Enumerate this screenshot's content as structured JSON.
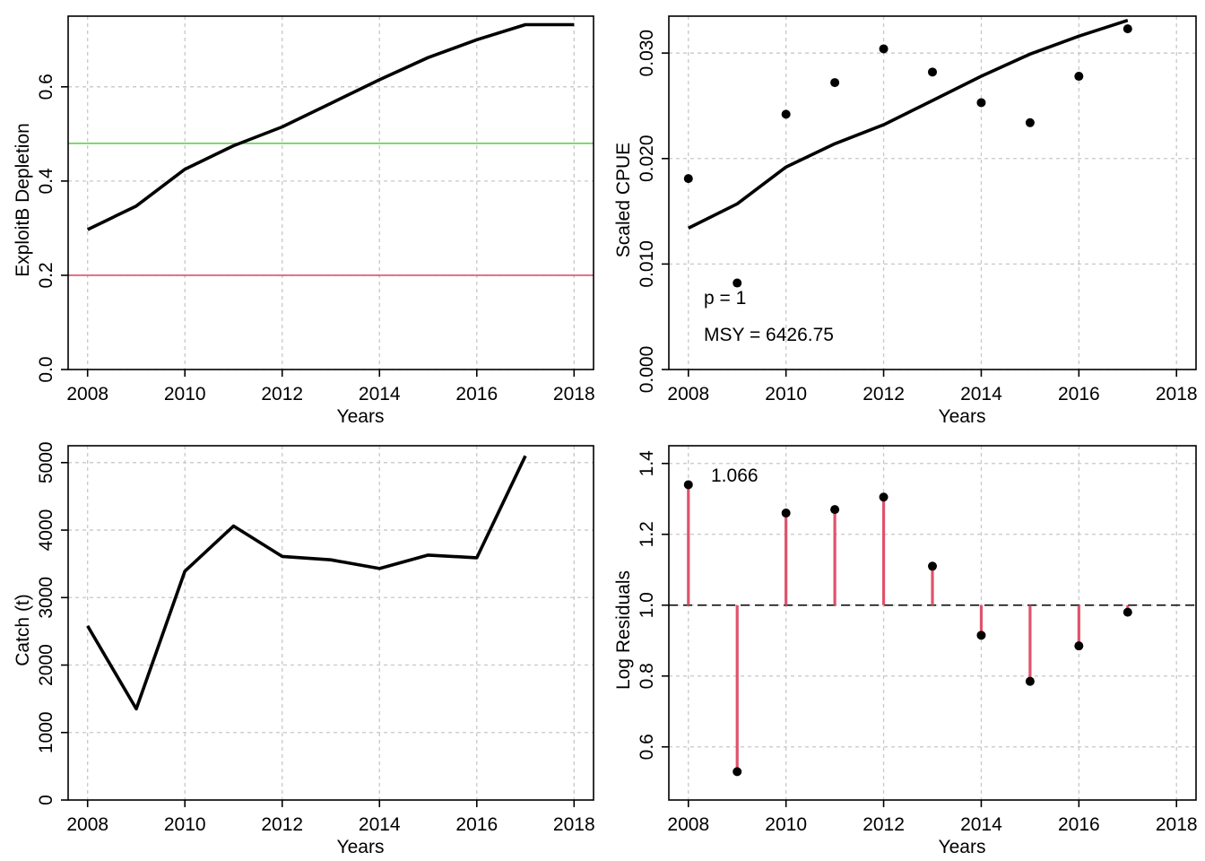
{
  "chart_data": [
    {
      "id": "depletion",
      "type": "line",
      "xlabel": "Years",
      "ylabel": "ExploitB Depletion",
      "xlim": [
        2007.6,
        2018.4
      ],
      "ylim": [
        0.0,
        0.75
      ],
      "xticks": [
        2008,
        2010,
        2012,
        2014,
        2016,
        2018
      ],
      "yticks": [
        0.0,
        0.2,
        0.4,
        0.6
      ],
      "ytick_labels": [
        "0.0",
        "0.2",
        "0.4",
        "0.6"
      ],
      "grid": true,
      "series": [
        {
          "x": [
            2008,
            2009,
            2010,
            2011,
            2012,
            2013,
            2014,
            2015,
            2016,
            2017,
            2018
          ],
          "y": [
            0.297,
            0.347,
            0.425,
            0.475,
            0.515,
            0.565,
            0.615,
            0.662,
            0.7,
            0.732,
            0.732
          ],
          "color": "#000000"
        }
      ],
      "hlines": [
        {
          "y": 0.48,
          "color": "#61d04f"
        },
        {
          "y": 0.2,
          "color": "#df536b"
        }
      ]
    },
    {
      "id": "cpue",
      "type": "line",
      "xlabel": "Years",
      "ylabel": "Scaled CPUE",
      "xlim": [
        2007.6,
        2018.4
      ],
      "ylim": [
        0.0,
        0.0335
      ],
      "xticks": [
        2008,
        2010,
        2012,
        2014,
        2016,
        2018
      ],
      "yticks": [
        0.0,
        0.01,
        0.02,
        0.03
      ],
      "ytick_labels": [
        "0.000",
        "0.010",
        "0.020",
        "0.030"
      ],
      "grid": true,
      "series": [
        {
          "x": [
            2008,
            2009,
            2010,
            2011,
            2012,
            2013,
            2014,
            2015,
            2016,
            2017
          ],
          "y": [
            0.0134,
            0.0157,
            0.0192,
            0.0214,
            0.0232,
            0.0255,
            0.0278,
            0.0299,
            0.0316,
            0.0331
          ],
          "color": "#000000"
        }
      ],
      "points": {
        "x": [
          2008,
          2009,
          2010,
          2011,
          2012,
          2013,
          2014,
          2015,
          2016,
          2017
        ],
        "y": [
          0.0181,
          0.0082,
          0.0242,
          0.0272,
          0.0304,
          0.0282,
          0.0253,
          0.0234,
          0.0278,
          0.0323
        ]
      },
      "annotations": [
        "p = 1",
        "MSY = 6426.75"
      ]
    },
    {
      "id": "catch",
      "type": "line",
      "xlabel": "Years",
      "ylabel": "Catch (t)",
      "xlim": [
        2007.6,
        2018.4
      ],
      "ylim": [
        0,
        5250
      ],
      "xticks": [
        2008,
        2010,
        2012,
        2014,
        2016,
        2018
      ],
      "yticks": [
        0,
        1000,
        2000,
        3000,
        4000,
        5000
      ],
      "ytick_labels": [
        "0",
        "1000",
        "2000",
        "3000",
        "4000",
        "5000"
      ],
      "grid": true,
      "series": [
        {
          "x": [
            2008,
            2009,
            2010,
            2011,
            2012,
            2013,
            2014,
            2015,
            2016,
            2017
          ],
          "y": [
            2580,
            1350,
            3390,
            4060,
            3610,
            3560,
            3430,
            3630,
            3590,
            5100
          ],
          "color": "#000000"
        }
      ]
    },
    {
      "id": "residuals",
      "type": "scatter",
      "xlabel": "Years",
      "ylabel": "Log Residuals",
      "xlim": [
        2007.6,
        2018.4
      ],
      "ylim": [
        0.45,
        1.45
      ],
      "xticks": [
        2008,
        2010,
        2012,
        2014,
        2016,
        2018
      ],
      "yticks": [
        0.6,
        0.8,
        1.0,
        1.2,
        1.4
      ],
      "ytick_labels": [
        "0.6",
        "0.8",
        "1.0",
        "1.2",
        "1.4"
      ],
      "grid": true,
      "reference_line": 1.0,
      "stem_color": "#df536b",
      "points": {
        "x": [
          2008,
          2009,
          2010,
          2011,
          2012,
          2013,
          2014,
          2015,
          2016,
          2017
        ],
        "y": [
          1.34,
          0.53,
          1.26,
          1.27,
          1.305,
          1.11,
          0.915,
          0.785,
          0.885,
          0.98
        ]
      },
      "annotations": [
        "1.066"
      ]
    }
  ]
}
